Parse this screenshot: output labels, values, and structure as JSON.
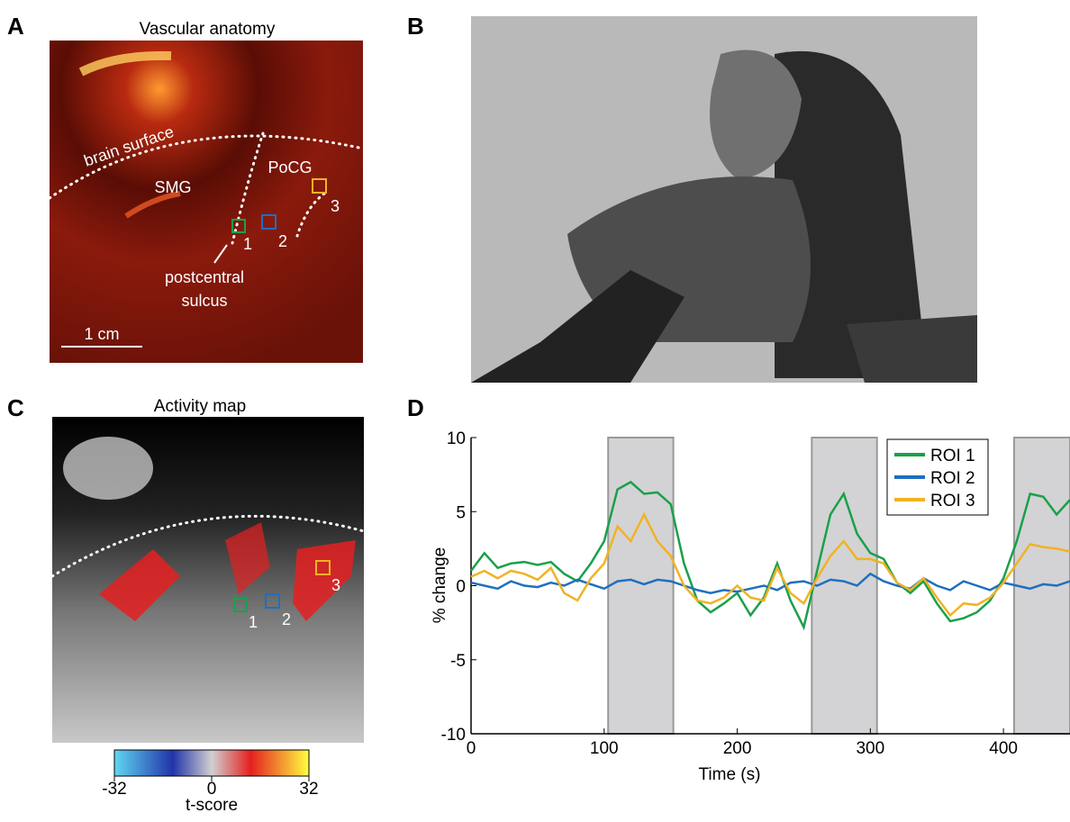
{
  "panels": {
    "a": "A",
    "b": "B",
    "c": "C",
    "d": "D"
  },
  "vascular": {
    "title": "Vascular anatomy",
    "surface": "brain surface",
    "smg": "SMG",
    "pocg": "PoCG",
    "roi_numbers": [
      "1",
      "2",
      "3"
    ],
    "sulcus": [
      "postcentral",
      "sulcus"
    ],
    "scale": "1 cm"
  },
  "activity": {
    "title": "Activity map",
    "roi_numbers": [
      "1",
      "2",
      "3"
    ],
    "colorbar": {
      "lim": [
        -32,
        32
      ],
      "ticks": [
        -32,
        0,
        32
      ],
      "label": "t-score"
    }
  },
  "chart_data": {
    "type": "line",
    "x_label": "Time (s)",
    "y_label": "% change",
    "xlim": [
      0,
      450
    ],
    "ylim": [
      -10,
      10
    ],
    "xticks": [
      0,
      100,
      200,
      300,
      400
    ],
    "yticks": [
      -10,
      -5,
      0,
      5,
      10
    ],
    "stimulus_blocks": [
      [
        103,
        152
      ],
      [
        256,
        305
      ],
      [
        408,
        450
      ]
    ],
    "legend": "upper right",
    "x": [
      0,
      10,
      20,
      30,
      40,
      50,
      60,
      70,
      80,
      90,
      100,
      110,
      120,
      130,
      140,
      150,
      160,
      170,
      180,
      190,
      200,
      210,
      220,
      230,
      240,
      250,
      260,
      270,
      280,
      290,
      300,
      310,
      320,
      330,
      340,
      350,
      360,
      370,
      380,
      390,
      400,
      410,
      420,
      430,
      440,
      450
    ],
    "series": [
      {
        "name": "ROI 1",
        "color": "#1aa04a",
        "values": [
          1.0,
          2.2,
          1.2,
          1.5,
          1.6,
          1.4,
          1.6,
          0.8,
          0.3,
          1.5,
          3.0,
          6.5,
          7.0,
          6.2,
          6.3,
          5.5,
          1.5,
          -1.0,
          -1.8,
          -1.2,
          -0.5,
          -2.0,
          -0.8,
          1.5,
          -1.0,
          -2.8,
          1.0,
          4.8,
          6.2,
          3.5,
          2.2,
          1.8,
          0.2,
          -0.5,
          0.3,
          -1.2,
          -2.4,
          -2.2,
          -1.8,
          -1.0,
          0.5,
          3.0,
          6.2,
          6.0,
          4.8,
          5.8
        ]
      },
      {
        "name": "ROI 2",
        "color": "#1f6fbf",
        "values": [
          0.2,
          0.0,
          -0.2,
          0.3,
          0.0,
          -0.1,
          0.2,
          0.0,
          0.4,
          0.1,
          -0.2,
          0.3,
          0.4,
          0.1,
          0.4,
          0.3,
          0.0,
          -0.3,
          -0.5,
          -0.3,
          -0.4,
          -0.2,
          0.0,
          -0.3,
          0.2,
          0.3,
          0.0,
          0.4,
          0.3,
          0.0,
          0.8,
          0.3,
          0.0,
          -0.2,
          0.5,
          0.0,
          -0.3,
          0.3,
          0.0,
          -0.3,
          0.2,
          0.0,
          -0.2,
          0.1,
          0.0,
          0.3
        ]
      },
      {
        "name": "ROI 3",
        "color": "#f0b323",
        "values": [
          0.6,
          1.0,
          0.5,
          1.0,
          0.8,
          0.4,
          1.2,
          -0.5,
          -1.0,
          0.5,
          1.5,
          4.0,
          3.0,
          4.8,
          3.0,
          2.0,
          0.0,
          -1.0,
          -1.2,
          -0.8,
          0.0,
          -0.8,
          -1.0,
          1.2,
          -0.5,
          -1.2,
          0.5,
          2.0,
          3.0,
          1.8,
          1.8,
          1.5,
          0.2,
          -0.3,
          0.5,
          -0.8,
          -2.0,
          -1.2,
          -1.3,
          -0.8,
          0.2,
          1.5,
          2.8,
          2.6,
          2.5,
          2.3
        ]
      }
    ]
  }
}
